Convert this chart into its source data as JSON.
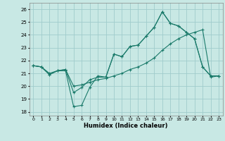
{
  "xlabel": "Humidex (Indice chaleur)",
  "bg_color": "#c8e8e4",
  "line_color": "#1a7a6a",
  "grid_color": "#a0cccc",
  "ylim": [
    17.7,
    26.5
  ],
  "xlim": [
    -0.5,
    23.5
  ],
  "yticks": [
    18,
    19,
    20,
    21,
    22,
    23,
    24,
    25,
    26
  ],
  "xticks": [
    0,
    1,
    2,
    3,
    4,
    5,
    6,
    7,
    8,
    9,
    10,
    11,
    12,
    13,
    14,
    15,
    16,
    17,
    18,
    19,
    20,
    21,
    22,
    23
  ],
  "line1_x": [
    0,
    1,
    2,
    3,
    4,
    5,
    6,
    7,
    8,
    9,
    10,
    11,
    12,
    13,
    14,
    15,
    16,
    17,
    18,
    19,
    20,
    21,
    22,
    23
  ],
  "line1_y": [
    21.6,
    21.5,
    20.9,
    21.2,
    21.2,
    18.4,
    18.5,
    19.9,
    20.8,
    20.7,
    22.5,
    22.3,
    23.1,
    23.2,
    23.9,
    24.6,
    25.8,
    24.9,
    24.7,
    24.2,
    23.7,
    21.5,
    20.8,
    20.8
  ],
  "line2_x": [
    0,
    1,
    2,
    3,
    4,
    5,
    6,
    7,
    8,
    9,
    10,
    11,
    12,
    13,
    14,
    15,
    16,
    17,
    18,
    19,
    20,
    21,
    22,
    23
  ],
  "line2_y": [
    21.6,
    21.5,
    20.9,
    21.2,
    21.3,
    19.5,
    19.9,
    20.5,
    20.7,
    20.7,
    22.5,
    22.3,
    23.1,
    23.2,
    23.9,
    24.6,
    25.8,
    24.9,
    24.7,
    24.2,
    23.7,
    21.5,
    20.8,
    20.8
  ],
  "line3_x": [
    0,
    1,
    2,
    3,
    4,
    5,
    6,
    7,
    8,
    9,
    10,
    11,
    12,
    13,
    14,
    15,
    16,
    17,
    18,
    19,
    20,
    21,
    22,
    23
  ],
  "line3_y": [
    21.6,
    21.5,
    21.0,
    21.2,
    21.3,
    20.0,
    20.1,
    20.3,
    20.5,
    20.6,
    20.8,
    21.0,
    21.3,
    21.5,
    21.8,
    22.2,
    22.8,
    23.3,
    23.7,
    24.0,
    24.2,
    24.4,
    20.7,
    20.8
  ]
}
